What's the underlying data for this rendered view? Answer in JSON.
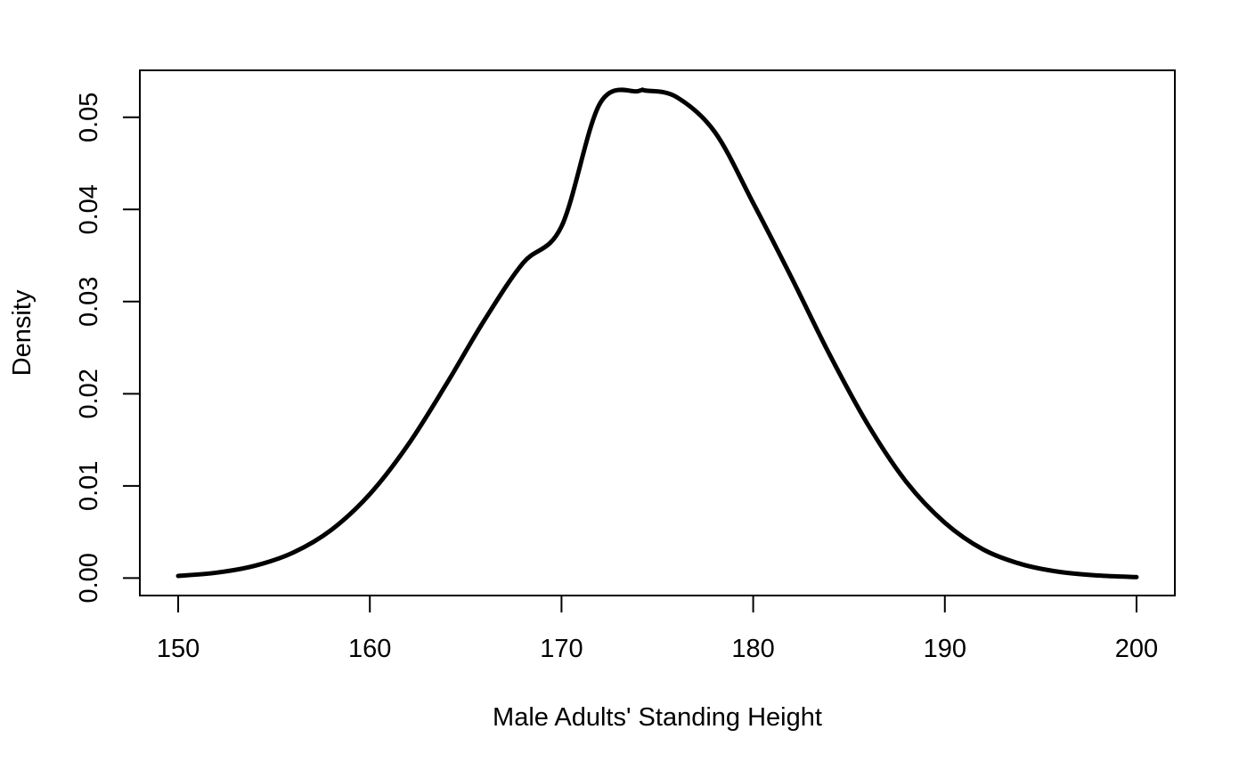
{
  "chart_data": {
    "type": "line",
    "title": "",
    "xlabel": "Male Adults' Standing Height",
    "ylabel": "Density",
    "xlim": [
      148,
      202
    ],
    "ylim": [
      -0.0019,
      0.0551
    ],
    "x_ticks": [
      150,
      160,
      170,
      180,
      190,
      200
    ],
    "x_tick_labels": [
      "150",
      "160",
      "170",
      "180",
      "190",
      "200"
    ],
    "y_ticks": [
      0,
      0.01,
      0.02,
      0.03,
      0.04,
      0.05
    ],
    "y_tick_labels": [
      "0.00",
      "0.01",
      "0.02",
      "0.03",
      "0.04",
      "0.05"
    ],
    "grid": false,
    "line_color": "#000000",
    "series": [
      {
        "x": [
          150,
          152,
          154,
          156,
          158,
          160,
          162,
          164,
          166,
          168,
          170,
          172,
          174,
          174.4,
          176,
          178,
          180,
          182,
          184,
          186,
          188,
          190,
          192,
          194,
          196,
          198,
          200
        ],
        "values": [
          0.00023,
          0.00058,
          0.00133,
          0.00276,
          0.00524,
          0.00911,
          0.01448,
          0.02107,
          0.02806,
          0.0342,
          0.03816,
          0.05148,
          0.05284,
          0.0529,
          0.0522,
          0.0484,
          0.0407,
          0.0326,
          0.0242,
          0.0166,
          0.0104,
          0.006,
          0.0031,
          0.0015,
          0.00066,
          0.00027,
          0.0001
        ]
      }
    ]
  }
}
